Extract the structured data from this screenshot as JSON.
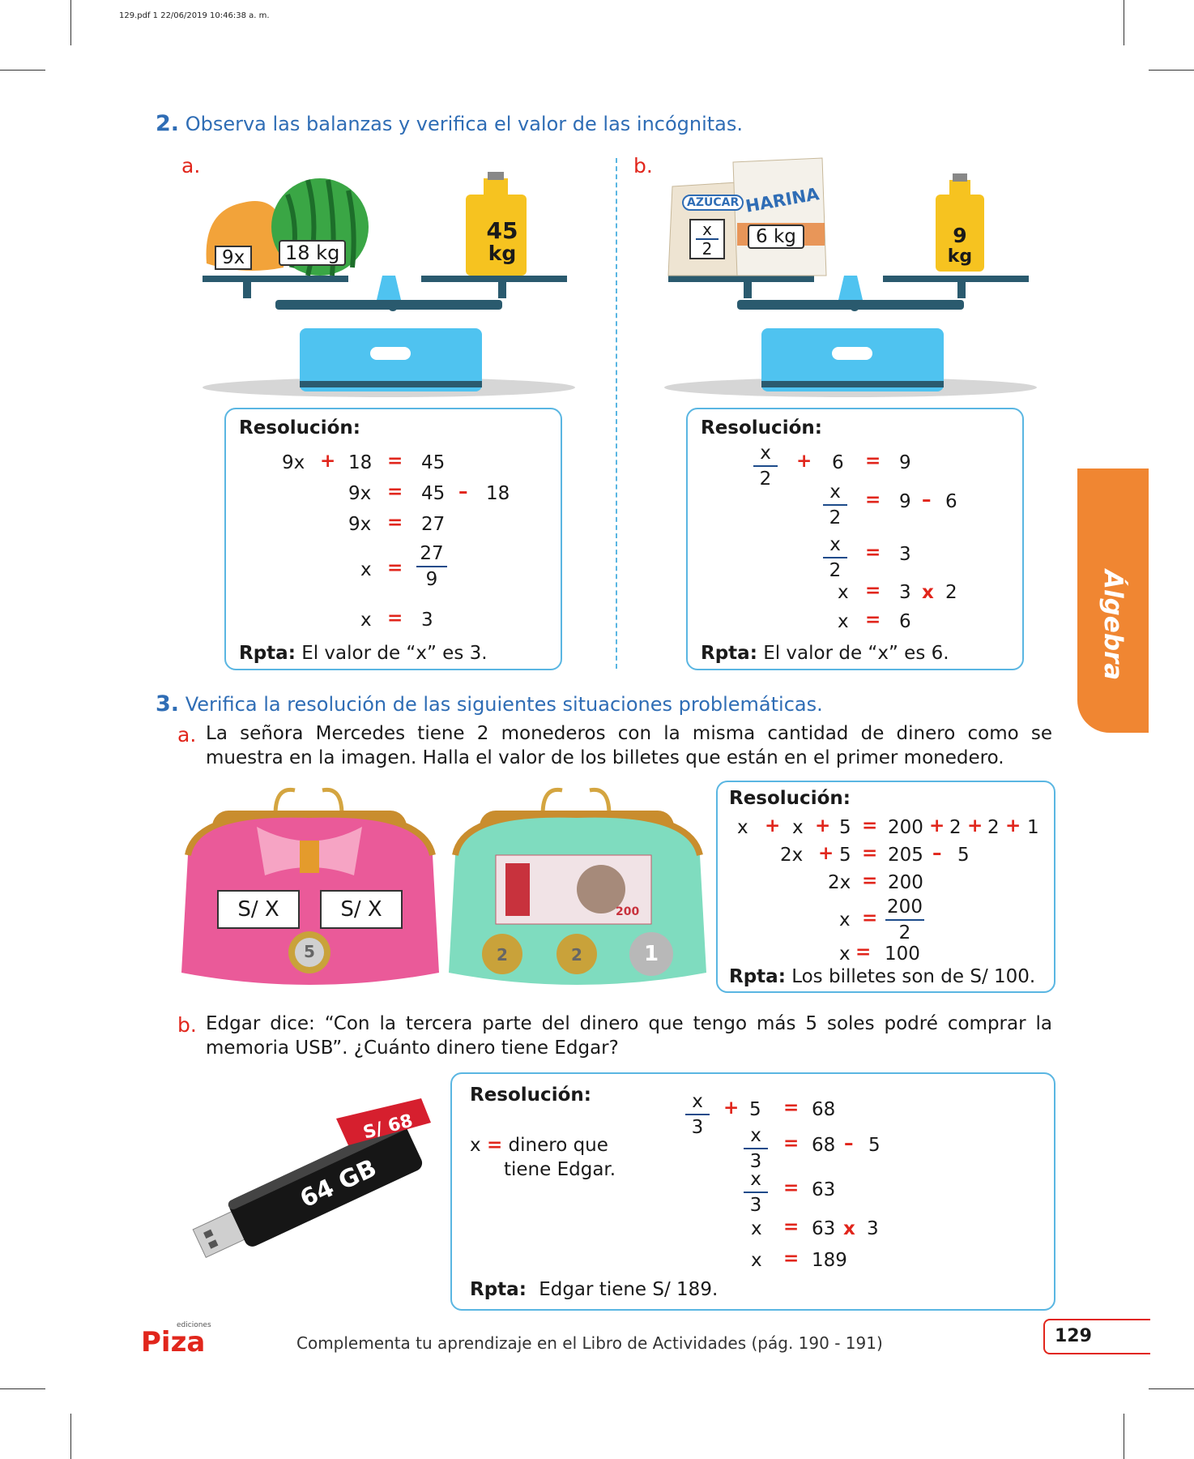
{
  "print_info": "129.pdf   1   22/06/2019   10:46:38 a. m.",
  "ex2": {
    "number": "2.",
    "title": "Observa las balanzas y verifica el valor de las incógnitas.",
    "a": {
      "letter": "a.",
      "label_9x": "9x",
      "label_18kg": "18 kg",
      "weight_line1": "45",
      "weight_line2": "kg",
      "resolucion": "Resolución:",
      "rpta_label": "Rpta:",
      "rpta_text": "El valor de “x” es 3.",
      "m": {
        "r1a": "9x",
        "r1op": "+",
        "r1b": "18",
        "r1eq": "=",
        "r1c": "45",
        "r2a": "9x",
        "r2eq": "=",
        "r2b": "45",
        "r2op": "–",
        "r2c": "18",
        "r3a": "9x",
        "r3eq": "=",
        "r3b": "27",
        "r4a": "x",
        "r4eq": "=",
        "r4num": "27",
        "r4den": "9",
        "r5a": "x",
        "r5eq": "=",
        "r5b": "3"
      }
    },
    "b": {
      "letter": "b.",
      "bag1": "AZÚCAR",
      "bag1_num": "x",
      "bag1_den": "2",
      "bag2": "HARINA",
      "bag2_label": "6 kg",
      "weight_line1": "9",
      "weight_line2": "kg",
      "resolucion": "Resolución:",
      "rpta_label": "Rpta:",
      "rpta_text": "El valor de “x” es 6.",
      "m": {
        "r1num": "x",
        "r1den": "2",
        "r1op": "+",
        "r1b": "6",
        "r1eq": "=",
        "r1c": "9",
        "r2num": "x",
        "r2den": "2",
        "r2eq": "=",
        "r2b": "9",
        "r2op": "–",
        "r2c": "6",
        "r3num": "x",
        "r3den": "2",
        "r3eq": "=",
        "r3b": "3",
        "r4a": "x",
        "r4eq": "=",
        "r4b": "3",
        "r4op": "x",
        "r4c": "2",
        "r5a": "x",
        "r5eq": "=",
        "r5b": "6"
      }
    }
  },
  "ex3": {
    "number": "3.",
    "title": "Verifica la resolución de las siguientes situaciones problemáticas.",
    "a": {
      "letter": "a.",
      "line1": "La señora Mercedes tiene 2 monederos con la misma cantidad de dinero como se",
      "line2": "muestra en la imagen. Halla el valor de los billetes que están en el primer monedero.",
      "bill1": "S/ X",
      "bill2": "S/ X",
      "coin5": "5",
      "note_value": "200",
      "coin2a": "2",
      "coin2b": "2",
      "coin1": "1",
      "resolucion": "Resolución:",
      "rpta_label": "Rpta:",
      "rpta_text": "Los billetes son de S/ 100.",
      "m": {
        "r1a": "x",
        "r1op1": "+",
        "r1b": "x",
        "r1op2": "+",
        "r1c": "5",
        "r1eq": "=",
        "r1d": "200",
        "r1op3": "+",
        "r1e": "2",
        "r1op4": "+",
        "r1f": "2",
        "r1op5": "+",
        "r1g": "1",
        "r2a": "2x",
        "r2op": "+",
        "r2b": "5",
        "r2eq": "=",
        "r2c": "205",
        "r2op2": "–",
        "r2d": "5",
        "r3a": "2x",
        "r3eq": "=",
        "r3b": "200",
        "r4a": "x",
        "r4eq": "=",
        "r4num": "200",
        "r4den": "2",
        "r5a": "x",
        "r5eq": "=",
        "r5b": "100"
      }
    },
    "b": {
      "letter": "b.",
      "line1": "Edgar dice: “Con la tercera parte del dinero que tengo más 5 soles podré comprar la",
      "line2": "memoria USB”. ¿Cuánto dinero tiene Edgar?",
      "usb_label": "64 GB",
      "price_tag": "S/ 68",
      "resolucion": "Resolución:",
      "def_x": "x",
      "def_eq": "=",
      "def_line1": "dinero que",
      "def_line2": "tiene Edgar.",
      "rpta_label": "Rpta:",
      "rpta_text": "Edgar tiene S/ 189.",
      "m": {
        "r1num": "x",
        "r1den": "3",
        "r1op": "+",
        "r1b": "5",
        "r1eq": "=",
        "r1c": "68",
        "r2num": "x",
        "r2den": "3",
        "r2eq": "=",
        "r2b": "68",
        "r2op": "–",
        "r2c": "5",
        "r3num": "x",
        "r3den": "3",
        "r3eq": "=",
        "r3b": "63",
        "r4a": "x",
        "r4eq": "=",
        "r4b": "63",
        "r4op": "x",
        "r4c": "3",
        "r5a": "x",
        "r5eq": "=",
        "r5b": "189"
      }
    }
  },
  "side_tab": "Álgebra",
  "footer": {
    "logo_small": "ediciones",
    "logo": "Piza",
    "text": "Complementa tu aprendizaje en el Libro de Actividades (pág. 190 - 191)",
    "page": "129"
  },
  "colors": {
    "blue": "#2f6db5",
    "red": "#e1261c",
    "orange": "#f08632",
    "box": "#5ab6e2",
    "scale": "#4fc3f0"
  }
}
